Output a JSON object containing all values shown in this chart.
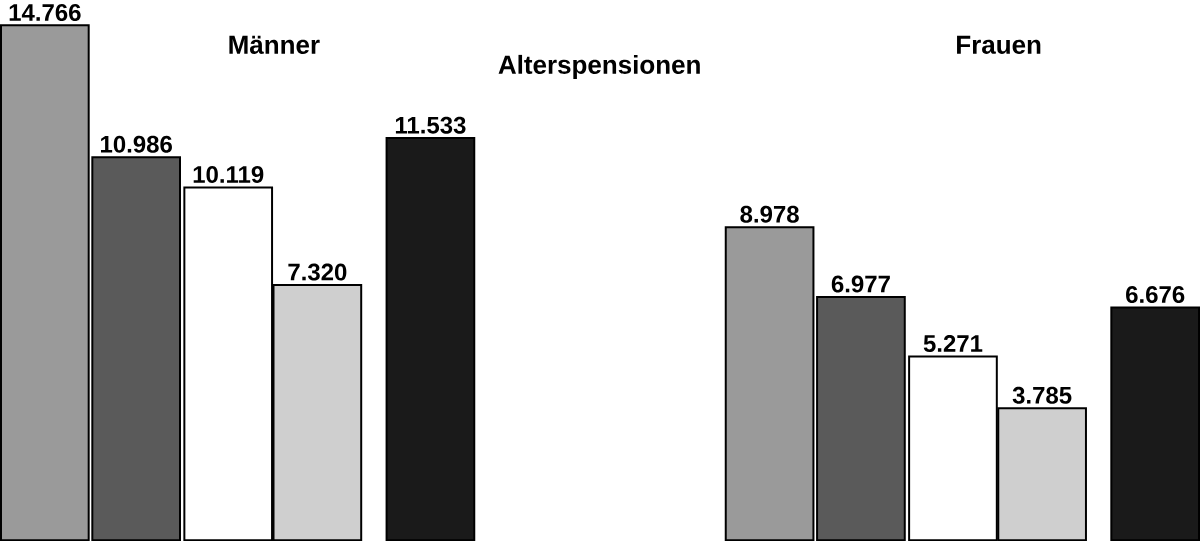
{
  "chart_data": {
    "type": "bar",
    "title": "Alterspensionen",
    "categories": [
      "Männer",
      "Frauen"
    ],
    "series": [
      {
        "color": "#9a9a9a",
        "values": [
          14766,
          8978
        ],
        "value_labels": [
          "14.766",
          "8.978"
        ]
      },
      {
        "color": "#5a5a5a",
        "values": [
          10986,
          6977
        ],
        "value_labels": [
          "10.986",
          "6.977"
        ]
      },
      {
        "color": "#ffffff",
        "values": [
          10119,
          5271
        ],
        "value_labels": [
          "10.119",
          "5.271"
        ]
      },
      {
        "color": "#cfcfcf",
        "values": [
          7320,
          3785
        ],
        "value_labels": [
          "7.320",
          "3.785"
        ]
      },
      {
        "color": "#1a1a1a",
        "values": [
          11533,
          6676
        ],
        "value_labels": [
          "11.533",
          "6.676"
        ]
      }
    ]
  }
}
